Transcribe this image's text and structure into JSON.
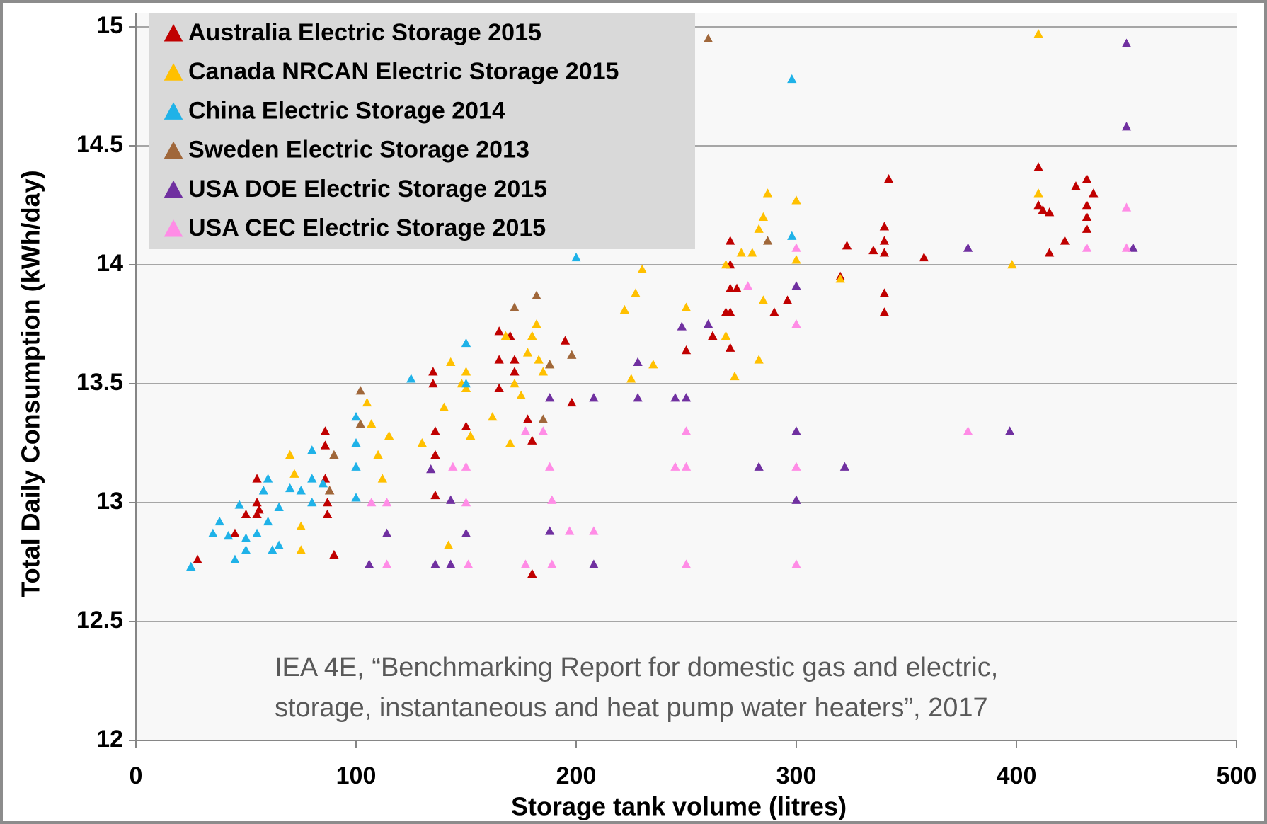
{
  "chart_data": {
    "type": "scatter",
    "x_label": "Storage tank volume (litres)",
    "y_label": "Total Daily Consumption (kWh/day)",
    "annotation": [
      "IEA 4E, “Benchmarking Report for domestic gas and electric,",
      "storage, instantaneous and heat pump water heaters”, 2017"
    ],
    "xlim": [
      0,
      500
    ],
    "xticks": [
      0,
      100,
      200,
      300,
      400,
      500
    ],
    "ylim": [
      12,
      15
    ],
    "yticks": [
      12,
      12.5,
      13,
      13.5,
      14,
      14.5,
      15
    ],
    "grid": true,
    "legend": "upper left",
    "series": [
      {
        "name": "Australia Electric Storage 2015",
        "color": "#c00000",
        "x": [
          28,
          45,
          50,
          55,
          55,
          55,
          56,
          86,
          86,
          86,
          87,
          87,
          88,
          90,
          135,
          135,
          136,
          136,
          136,
          150,
          165,
          165,
          165,
          170,
          172,
          172,
          178,
          180,
          180,
          195,
          198,
          250,
          262,
          268,
          270,
          270,
          270,
          270,
          270,
          273,
          290,
          296,
          320,
          323,
          335,
          340,
          340,
          340,
          340,
          340,
          342,
          358,
          410,
          410,
          412,
          415,
          415,
          422,
          427,
          432,
          432,
          432,
          432,
          435
        ],
        "values": [
          12.76,
          12.87,
          12.95,
          13.1,
          13.0,
          12.95,
          12.97,
          13.3,
          13.24,
          13.1,
          13.0,
          12.95,
          13.05,
          12.78,
          13.55,
          13.5,
          13.3,
          13.2,
          13.03,
          13.32,
          13.72,
          13.6,
          13.48,
          13.7,
          13.6,
          13.55,
          13.35,
          12.7,
          13.26,
          13.68,
          13.42,
          13.64,
          13.7,
          13.8,
          14.1,
          14.0,
          13.9,
          13.8,
          13.65,
          13.9,
          13.8,
          13.85,
          13.95,
          14.08,
          14.06,
          14.16,
          14.1,
          14.05,
          13.88,
          13.8,
          14.36,
          14.03,
          14.41,
          14.25,
          14.23,
          14.22,
          14.05,
          14.1,
          14.33,
          14.36,
          14.25,
          14.2,
          14.15,
          14.3
        ]
      },
      {
        "name": "Canada NRCAN Electric Storage 2015",
        "color": "#ffc000",
        "x": [
          70,
          72,
          75,
          75,
          105,
          107,
          110,
          112,
          115,
          130,
          140,
          142,
          143,
          148,
          150,
          150,
          152,
          162,
          168,
          170,
          172,
          175,
          178,
          180,
          182,
          183,
          185,
          188,
          222,
          225,
          227,
          230,
          235,
          250,
          268,
          268,
          272,
          275,
          280,
          283,
          283,
          285,
          287,
          285,
          300,
          300,
          320,
          398,
          410,
          410
        ],
        "values": [
          13.2,
          13.12,
          12.9,
          12.8,
          13.42,
          13.33,
          13.2,
          13.1,
          13.28,
          13.25,
          13.4,
          12.82,
          13.59,
          13.5,
          13.55,
          13.48,
          13.28,
          13.36,
          13.7,
          13.25,
          13.5,
          13.45,
          13.63,
          13.7,
          13.75,
          13.6,
          13.55,
          13.58,
          13.81,
          13.52,
          13.88,
          13.98,
          13.58,
          13.82,
          14.0,
          13.7,
          13.53,
          14.05,
          14.05,
          14.15,
          13.6,
          14.2,
          14.3,
          13.85,
          14.27,
          14.02,
          13.94,
          14.0,
          14.3,
          14.97
        ]
      },
      {
        "name": "China Electric Storage 2014",
        "color": "#1fb2e8",
        "x": [
          25,
          35,
          38,
          42,
          45,
          47,
          50,
          50,
          55,
          58,
          60,
          60,
          62,
          65,
          65,
          70,
          75,
          80,
          80,
          80,
          85,
          100,
          100,
          100,
          100,
          125,
          150,
          150,
          200,
          298,
          298
        ],
        "values": [
          12.73,
          12.87,
          12.92,
          12.86,
          12.76,
          12.99,
          12.8,
          12.85,
          12.87,
          13.05,
          13.1,
          12.92,
          12.8,
          12.98,
          12.82,
          13.06,
          13.05,
          13.22,
          13.1,
          13.0,
          13.08,
          13.36,
          13.25,
          13.15,
          13.02,
          13.52,
          13.67,
          13.5,
          14.03,
          14.78,
          14.12
        ]
      },
      {
        "name": "Sweden Electric Storage 2013",
        "color": "#a0673a",
        "x": [
          90,
          88,
          102,
          102,
          172,
          182,
          185,
          188,
          198,
          260,
          287
        ],
        "values": [
          13.2,
          13.05,
          13.47,
          13.33,
          13.82,
          13.87,
          13.35,
          13.58,
          13.62,
          14.95,
          14.1
        ]
      },
      {
        "name": "USA DOE Electric Storage 2015",
        "color": "#7030a0",
        "x": [
          106,
          114,
          134,
          136,
          143,
          143,
          150,
          188,
          188,
          208,
          208,
          228,
          228,
          245,
          248,
          250,
          260,
          283,
          300,
          300,
          300,
          322,
          378,
          397,
          450,
          450,
          453
        ],
        "values": [
          12.74,
          12.87,
          13.14,
          12.74,
          12.74,
          13.01,
          12.87,
          13.44,
          12.88,
          13.44,
          12.74,
          13.59,
          13.44,
          13.44,
          13.74,
          13.44,
          13.75,
          13.15,
          13.91,
          13.3,
          13.01,
          13.15,
          14.07,
          13.3,
          14.93,
          14.58,
          14.07
        ]
      },
      {
        "name": "USA CEC Electric Storage 2015",
        "color": "#ff8ce6",
        "x": [
          107,
          114,
          114,
          144,
          150,
          151,
          150,
          177,
          177,
          185,
          188,
          189,
          189,
          197,
          208,
          245,
          250,
          250,
          250,
          278,
          300,
          300,
          300,
          300,
          378,
          432,
          450,
          450
        ],
        "values": [
          13.0,
          12.74,
          13.0,
          13.15,
          13.15,
          12.74,
          13.0,
          12.74,
          13.3,
          13.3,
          13.15,
          12.74,
          13.01,
          12.88,
          12.88,
          13.15,
          13.15,
          13.3,
          12.74,
          13.91,
          14.07,
          13.75,
          13.15,
          12.74,
          13.3,
          14.07,
          14.24,
          14.07
        ]
      }
    ]
  }
}
